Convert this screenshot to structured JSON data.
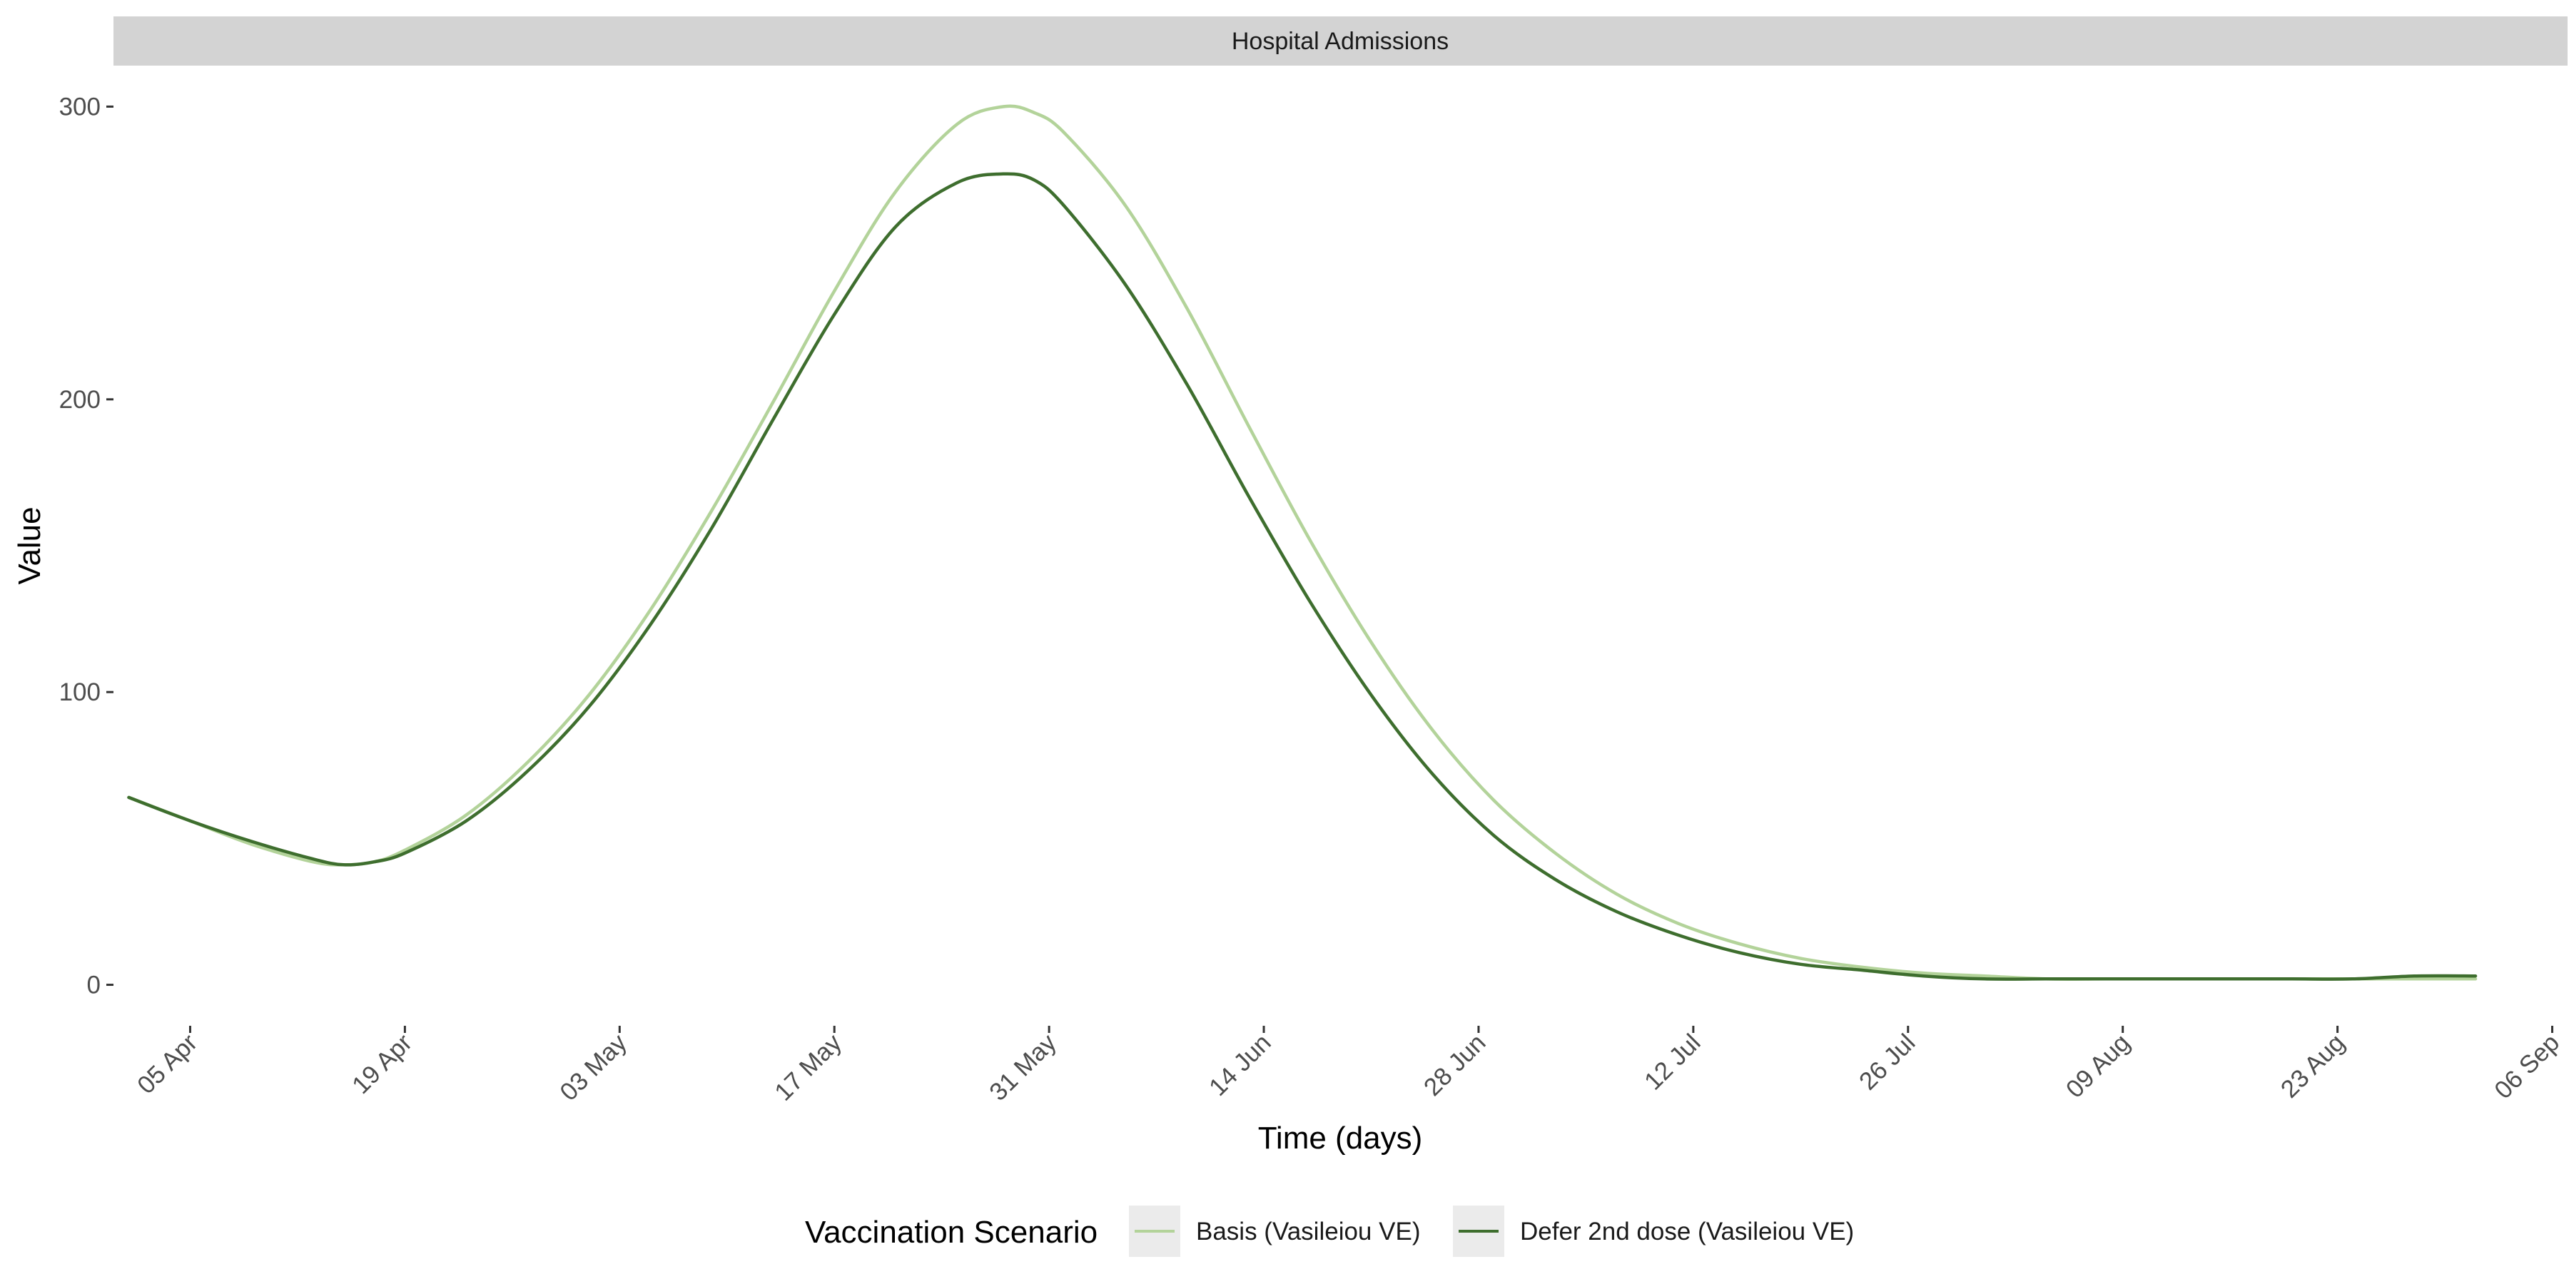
{
  "chart_data": {
    "type": "line",
    "panel_title": "Hospital Admissions",
    "xlabel": "Time (days)",
    "ylabel": "Value",
    "x_axis_type": "date",
    "xlim": [
      "2021-03-31",
      "2021-09-07"
    ],
    "ylim": [
      -14,
      314
    ],
    "y_ticks": [
      0,
      100,
      200,
      300
    ],
    "x_ticks": [
      {
        "date": "2021-04-05",
        "label": "05 Apr"
      },
      {
        "date": "2021-04-19",
        "label": "19 Apr"
      },
      {
        "date": "2021-05-03",
        "label": "03 May"
      },
      {
        "date": "2021-05-17",
        "label": "17 May"
      },
      {
        "date": "2021-05-31",
        "label": "31 May"
      },
      {
        "date": "2021-06-14",
        "label": "14 Jun"
      },
      {
        "date": "2021-06-28",
        "label": "28 Jun"
      },
      {
        "date": "2021-07-12",
        "label": "12 Jul"
      },
      {
        "date": "2021-07-26",
        "label": "26 Jul"
      },
      {
        "date": "2021-08-09",
        "label": "09 Aug"
      },
      {
        "date": "2021-08-23",
        "label": "23 Aug"
      },
      {
        "date": "2021-09-06",
        "label": "06 Sep"
      }
    ],
    "grid": false,
    "legend": {
      "title": "Vaccination Scenario",
      "position": "bottom"
    },
    "x": [
      "2021-04-01",
      "2021-04-05",
      "2021-04-09",
      "2021-04-13",
      "2021-04-15",
      "2021-04-17",
      "2021-04-19",
      "2021-04-23",
      "2021-04-27",
      "2021-05-01",
      "2021-05-05",
      "2021-05-09",
      "2021-05-13",
      "2021-05-17",
      "2021-05-21",
      "2021-05-25",
      "2021-05-28",
      "2021-05-30",
      "2021-06-01",
      "2021-06-05",
      "2021-06-09",
      "2021-06-13",
      "2021-06-17",
      "2021-06-21",
      "2021-06-25",
      "2021-06-29",
      "2021-07-03",
      "2021-07-07",
      "2021-07-11",
      "2021-07-15",
      "2021-07-19",
      "2021-07-23",
      "2021-07-27",
      "2021-07-31",
      "2021-08-04",
      "2021-08-08",
      "2021-08-12",
      "2021-08-16",
      "2021-08-20",
      "2021-08-24",
      "2021-08-28",
      "2021-09-01"
    ],
    "series": [
      {
        "name": "Basis (Vasileiou VE)",
        "color": "#b3d39a",
        "values": [
          64,
          56,
          48,
          42,
          41,
          42,
          46,
          58,
          76,
          99,
          128,
          162,
          199,
          237,
          271,
          294,
          300,
          298,
          291,
          266,
          231,
          191,
          152,
          117,
          87,
          63,
          45,
          31,
          21,
          14,
          9,
          6,
          4,
          3,
          2,
          2,
          2,
          2,
          2,
          2,
          2,
          2
        ]
      },
      {
        "name": "Defer 2nd dose (Vasileiou VE)",
        "color": "#3e6e2e",
        "values": [
          64,
          56,
          49,
          43,
          41,
          42,
          45,
          56,
          73,
          95,
          123,
          156,
          193,
          229,
          259,
          274,
          277,
          275,
          266,
          239,
          205,
          167,
          131,
          99,
          72,
          51,
          36,
          25,
          17,
          11,
          7,
          5,
          3,
          2,
          2,
          2,
          2,
          2,
          2,
          2,
          3,
          3
        ]
      }
    ]
  }
}
